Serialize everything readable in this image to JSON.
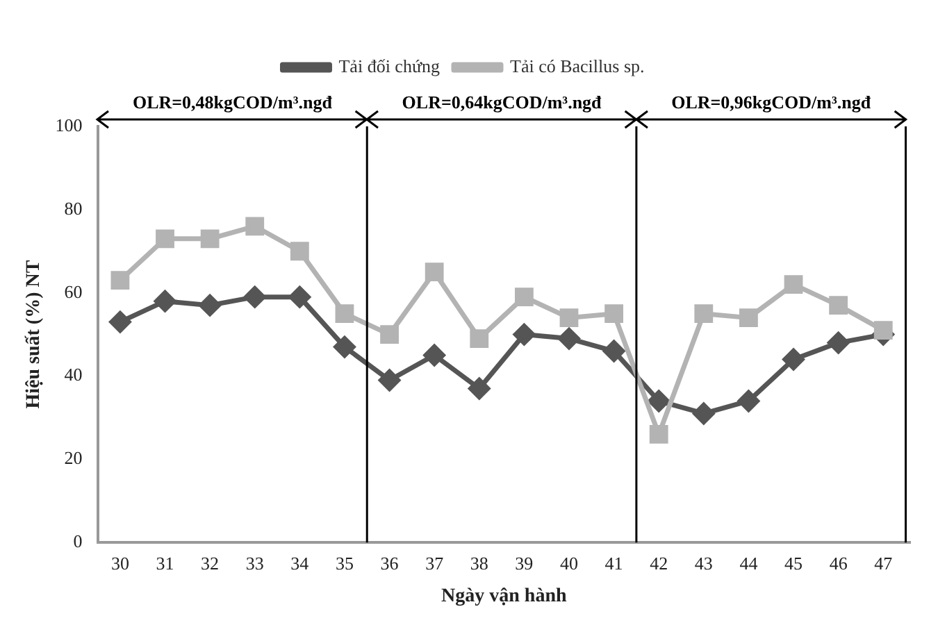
{
  "chart_data": {
    "type": "line",
    "xlabel": "Ngày vận hành",
    "ylabel": "Hiệu suất (%) NT",
    "x": [
      30,
      31,
      32,
      33,
      34,
      35,
      36,
      37,
      38,
      39,
      40,
      41,
      42,
      43,
      44,
      45,
      46,
      47
    ],
    "series": [
      {
        "name": "Tải đối chứng",
        "color": "#555555",
        "marker": "diamond",
        "values": [
          53,
          58,
          57,
          59,
          59,
          47,
          39,
          45,
          37,
          50,
          49,
          46,
          34,
          31,
          34,
          44,
          48,
          50
        ]
      },
      {
        "name": "Tải có Bacillus sp.",
        "color": "#b3b3b3",
        "marker": "square",
        "values": [
          63,
          73,
          73,
          76,
          70,
          55,
          50,
          65,
          49,
          59,
          54,
          55,
          26,
          55,
          54,
          62,
          57,
          51
        ]
      }
    ],
    "xlim": [
      29.5,
      47.6
    ],
    "xticks": [
      30,
      31,
      32,
      33,
      34,
      35,
      36,
      37,
      38,
      39,
      40,
      41,
      42,
      43,
      44,
      45,
      46,
      47
    ],
    "ylim": [
      0,
      100
    ],
    "yticks": [
      0,
      20,
      40,
      60,
      80,
      100
    ],
    "ref_lines": [
      {
        "axis": "x",
        "value": 35.5,
        "color": "#000000"
      },
      {
        "axis": "x",
        "value": 41.5,
        "color": "#000000"
      },
      {
        "axis": "x",
        "value": 47.5,
        "color": "#000000"
      }
    ],
    "annotations": [
      "OLR=0,48kgCOD/m³.ngđ",
      "OLR=0,64kgCOD/m³.ngđ",
      "OLR=0,96kgCOD/m³.ngđ"
    ],
    "grid": false,
    "legend": "top",
    "line_style": "solid"
  }
}
